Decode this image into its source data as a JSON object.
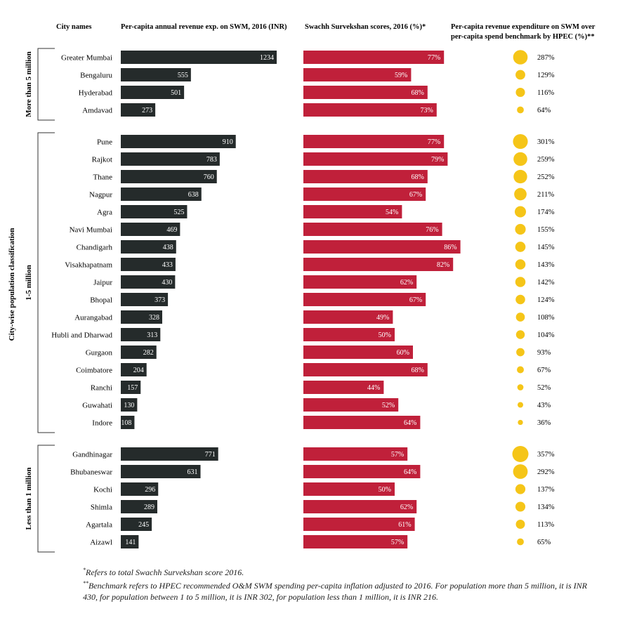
{
  "chart_data": {
    "type": "bar",
    "headers": {
      "city": "City names",
      "revenue": "Per-capita annual revenue exp. on SWM, 2016 (INR)",
      "score": "Swachh Survekshan scores, 2016 (%)*",
      "ratio_line1": "Per-capita revenue expenditure on SWM over",
      "ratio_line2": "per-capita spend benchmark by HPEC (%)**"
    },
    "axis_title": "City-wise population classification",
    "groups": [
      {
        "label": "More than 5 million",
        "cities": [
          {
            "name": "Greater Mumbai",
            "revenue": 1234,
            "score": 77,
            "ratio": 287
          },
          {
            "name": "Bengaluru",
            "revenue": 555,
            "score": 59,
            "ratio": 129
          },
          {
            "name": "Hyderabad",
            "revenue": 501,
            "score": 68,
            "ratio": 116
          },
          {
            "name": "Amdavad",
            "revenue": 273,
            "score": 73,
            "ratio": 64
          }
        ]
      },
      {
        "label": "1-5 million",
        "cities": [
          {
            "name": "Pune",
            "revenue": 910,
            "score": 77,
            "ratio": 301
          },
          {
            "name": "Rajkot",
            "revenue": 783,
            "score": 79,
            "ratio": 259
          },
          {
            "name": "Thane",
            "revenue": 760,
            "score": 68,
            "ratio": 252
          },
          {
            "name": "Nagpur",
            "revenue": 638,
            "score": 67,
            "ratio": 211
          },
          {
            "name": "Agra",
            "revenue": 525,
            "score": 54,
            "ratio": 174
          },
          {
            "name": "Navi Mumbai",
            "revenue": 469,
            "score": 76,
            "ratio": 155
          },
          {
            "name": "Chandigarh",
            "revenue": 438,
            "score": 86,
            "ratio": 145
          },
          {
            "name": "Visakhapatnam",
            "revenue": 433,
            "score": 82,
            "ratio": 143
          },
          {
            "name": "Jaipur",
            "revenue": 430,
            "score": 62,
            "ratio": 142
          },
          {
            "name": "Bhopal",
            "revenue": 373,
            "score": 67,
            "ratio": 124
          },
          {
            "name": "Aurangabad",
            "revenue": 328,
            "score": 49,
            "ratio": 108
          },
          {
            "name": "Hubli and Dharwad",
            "revenue": 313,
            "score": 50,
            "ratio": 104
          },
          {
            "name": "Gurgaon",
            "revenue": 282,
            "score": 60,
            "ratio": 93
          },
          {
            "name": "Coimbatore",
            "revenue": 204,
            "score": 68,
            "ratio": 67
          },
          {
            "name": "Ranchi",
            "revenue": 157,
            "score": 44,
            "ratio": 52
          },
          {
            "name": "Guwahati",
            "revenue": 130,
            "score": 52,
            "ratio": 43
          },
          {
            "name": "Indore",
            "revenue": 108,
            "score": 64,
            "ratio": 36
          }
        ]
      },
      {
        "label": "Less than 1 million",
        "cities": [
          {
            "name": "Gandhinagar",
            "revenue": 771,
            "score": 57,
            "ratio": 357
          },
          {
            "name": "Bhubaneswar",
            "revenue": 631,
            "score": 64,
            "ratio": 292
          },
          {
            "name": "Kochi",
            "revenue": 296,
            "score": 50,
            "ratio": 137
          },
          {
            "name": "Shimla",
            "revenue": 289,
            "score": 62,
            "ratio": 134
          },
          {
            "name": "Agartala",
            "revenue": 245,
            "score": 61,
            "ratio": 113
          },
          {
            "name": "Aizawl",
            "revenue": 141,
            "score": 57,
            "ratio": 65
          }
        ]
      }
    ],
    "colors": {
      "revenue": "#252b2b",
      "score": "#c0203a",
      "ratio": "#f5c518"
    }
  },
  "footnotes": {
    "note1_mark": "*",
    "note1": "Refers to total Swachh Survekshan score 2016.",
    "note2_mark": "**",
    "note2": "Benchmark refers to HPEC recommended O&M SWM spending per-capita inflation adjusted to 2016. For population more than 5 million, it is INR 430, for population between 1 to 5 million, it is INR 302, for population less than 1 million, it is INR 216."
  }
}
